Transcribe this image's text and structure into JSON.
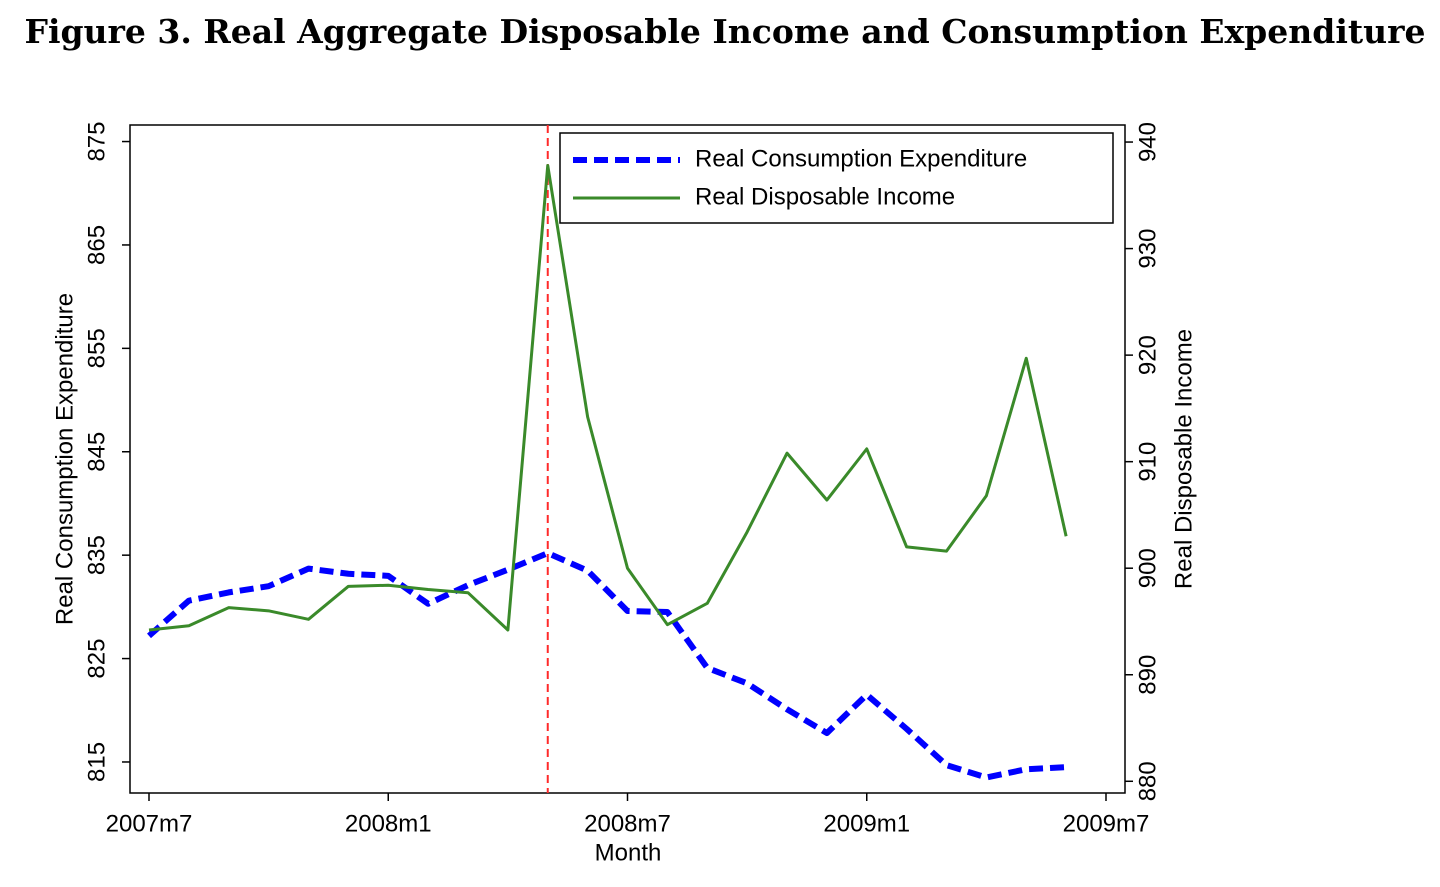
{
  "chart_data": {
    "type": "line",
    "title": "Figure 3.  Real Aggregate Disposable Income and Consumption Expenditure",
    "x_label": "Month",
    "y_label": "Real Consumption Expenditure",
    "y2_label": "Real Disposable Income",
    "x": [
      "2007m7",
      "2007m8",
      "2007m9",
      "2007m10",
      "2007m11",
      "2007m12",
      "2008m1",
      "2008m2",
      "2008m3",
      "2008m4",
      "2008m5",
      "2008m6",
      "2008m7",
      "2008m8",
      "2008m9",
      "2008m10",
      "2008m11",
      "2008m12",
      "2009m1",
      "2009m2",
      "2009m3",
      "2009m4",
      "2009m5",
      "2009m6"
    ],
    "xlim": [
      "2007m7",
      "2009m7"
    ],
    "xticks": [
      "2007m7",
      "2008m1",
      "2008m7",
      "2009m1",
      "2009m7"
    ],
    "ylim": [
      812,
      876.6
    ],
    "yticks": [
      815,
      825,
      835,
      845,
      855,
      865,
      875
    ],
    "y2lim": [
      878.9,
      941.6
    ],
    "y2ticks": [
      880,
      890,
      900,
      910,
      920,
      930,
      940
    ],
    "vline": "2008m5",
    "vline_color": "#ff2a2a",
    "legend": "top-right",
    "series": [
      {
        "name": "Real Consumption Expenditure",
        "color": "#0000ff",
        "dashed": true,
        "values": [
          827.2,
          830.6,
          831.4,
          832.0,
          833.7,
          833.2,
          833.0,
          830.3,
          832.1,
          833.6,
          835.2,
          833.5,
          829.6,
          829.5,
          824.1,
          822.6,
          820.1,
          817.8,
          821.5,
          818.2,
          814.7,
          813.5,
          814.3,
          814.5
        ]
      },
      {
        "name": "Real Disposable Income",
        "color": "#3a8a2a",
        "axis": "y2",
        "values": [
          894.2,
          894.6,
          896.3,
          896.0,
          895.2,
          898.3,
          898.4,
          898.0,
          897.7,
          894.2,
          937.8,
          914.2,
          900.0,
          894.7,
          896.7,
          903.4,
          910.8,
          906.4,
          911.2,
          902.0,
          901.6,
          906.8,
          919.7,
          903.0
        ]
      }
    ]
  }
}
